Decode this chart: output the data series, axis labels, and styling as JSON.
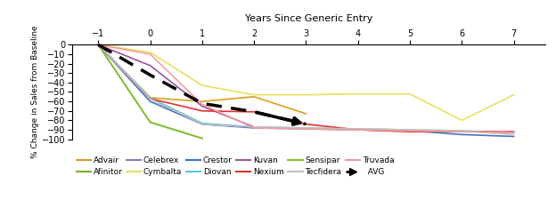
{
  "title": "Years Since Generic Entry",
  "ylabel": "% Change in Sales from Baseline",
  "xlim": [
    -1.5,
    7.6
  ],
  "ylim": [
    -105,
    5
  ],
  "xticks": [
    -1,
    0,
    1,
    2,
    3,
    4,
    5,
    6,
    7
  ],
  "yticks": [
    0,
    -10,
    -20,
    -30,
    -40,
    -50,
    -60,
    -70,
    -80,
    -90,
    -100
  ],
  "series": {
    "Advair": {
      "color": "#D4A020",
      "x": [
        -1,
        0,
        1,
        2,
        3
      ],
      "y": [
        0,
        -56,
        -60,
        -55,
        -73
      ]
    },
    "Afinitor": {
      "color": "#80B020",
      "x": [
        -1,
        0,
        1
      ],
      "y": [
        0,
        -82,
        -99
      ]
    },
    "Celebrex": {
      "color": "#8080C0",
      "x": [
        -1,
        0,
        1,
        2
      ],
      "y": [
        0,
        -57,
        -84,
        -87
      ]
    },
    "Cymbalta": {
      "color": "#E8E060",
      "x": [
        -1,
        0,
        1,
        2,
        3,
        4,
        5,
        6,
        7
      ],
      "y": [
        0,
        -8,
        -43,
        -53,
        -53,
        -52,
        -52,
        -80,
        -53
      ]
    },
    "Crestor": {
      "color": "#4472C4",
      "x": [
        -1,
        0,
        1,
        2,
        3,
        4,
        5,
        6,
        7
      ],
      "y": [
        0,
        -60,
        -84,
        -88,
        -89,
        -90,
        -91,
        -95,
        -97
      ]
    },
    "Diovan": {
      "color": "#60C8C8",
      "x": [
        -1,
        0,
        1,
        2,
        3,
        4,
        5,
        6,
        7
      ],
      "y": [
        0,
        -56,
        -83,
        -87,
        -88,
        -89,
        -90,
        -91,
        -93
      ]
    },
    "Kuvan": {
      "color": "#A050A0",
      "x": [
        -1,
        0,
        1,
        2
      ],
      "y": [
        0,
        -22,
        -65,
        -87
      ]
    },
    "Nexium": {
      "color": "#E03030",
      "x": [
        -1,
        0,
        1,
        2,
        3,
        4,
        5,
        6,
        7
      ],
      "y": [
        0,
        -57,
        -70,
        -71,
        -84,
        -90,
        -92,
        -92,
        -92
      ]
    },
    "Sensipar": {
      "color": "#80C030",
      "x": [
        -1,
        0,
        1
      ],
      "y": [
        0,
        -82,
        -99
      ]
    },
    "Tecfidera": {
      "color": "#C0C0C0",
      "x": [
        -1,
        0,
        1,
        2,
        3,
        4,
        5,
        6,
        7
      ],
      "y": [
        0,
        -57,
        -84,
        -87,
        -88,
        -89,
        -90,
        -91,
        -95
      ]
    },
    "Truvada": {
      "color": "#F0A0A0",
      "x": [
        -1,
        0,
        1,
        2,
        3,
        4,
        5,
        6,
        7
      ],
      "y": [
        0,
        -10,
        -63,
        -88,
        -89,
        -90,
        -91,
        -92,
        -93
      ]
    },
    "AVG": {
      "color": "#000000",
      "x": [
        -1,
        0,
        1,
        2,
        3
      ],
      "y": [
        0,
        -32,
        -62,
        -71,
        -84
      ]
    }
  },
  "legend_order": [
    "Advair",
    "Afinitor",
    "Celebrex",
    "Cymbalta",
    "Crestor",
    "Diovan",
    "Kuvan",
    "Nexium",
    "Sensipar",
    "Tecfidera",
    "Truvada",
    "AVG"
  ]
}
